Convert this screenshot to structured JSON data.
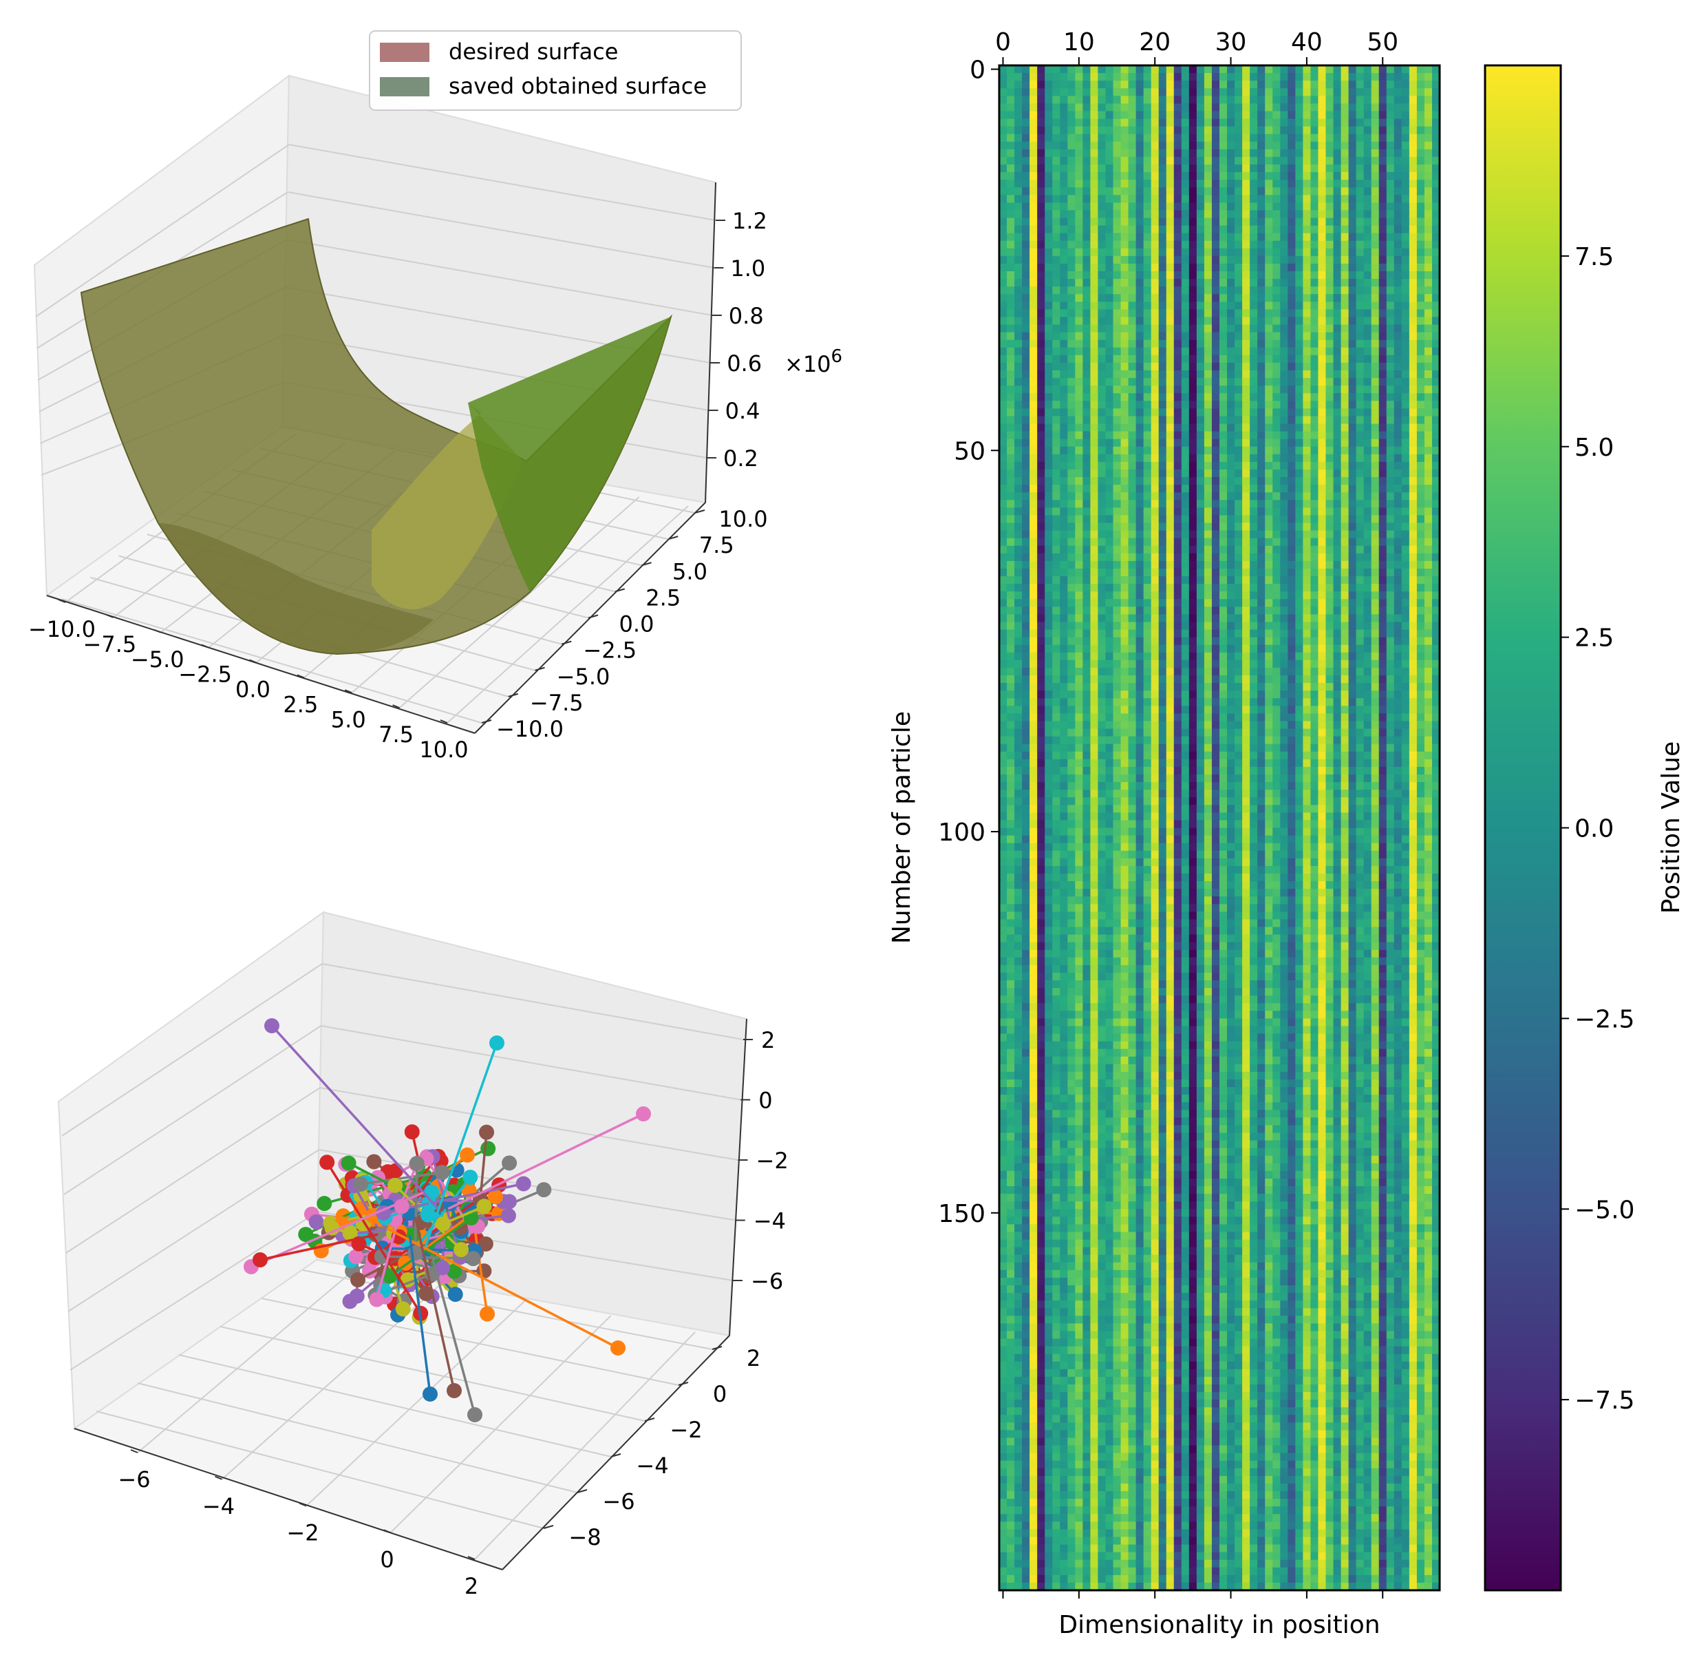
{
  "chart_data": [
    {
      "type": "surface3d",
      "title": "",
      "legend": {
        "placement": "top-right",
        "entries": [
          {
            "label": "desired surface",
            "color": "#b07a7a"
          },
          {
            "label": "saved obtained surface",
            "color": "#7a907a"
          }
        ]
      },
      "x_ticks": [
        "−10.0",
        "−7.5",
        "−5.0",
        "−2.5",
        "0.0",
        "2.5",
        "5.0",
        "7.5",
        "10.0"
      ],
      "y_ticks": [
        "−10.0",
        "−7.5",
        "−5.0",
        "−2.5",
        "0.0",
        "2.5",
        "5.0",
        "7.5",
        "10.0"
      ],
      "z_ticks": [
        "0.2",
        "0.4",
        "0.6",
        "0.8",
        "1.0",
        "1.2"
      ],
      "z_offset_label": "×10",
      "z_offset_exp": "6",
      "xlim": [
        -10,
        10
      ],
      "ylim": [
        -10,
        10
      ],
      "zlim": [
        0,
        1.3
      ],
      "surface_color": "#6b6a2e"
    },
    {
      "type": "scatter3d",
      "title": "",
      "x_ticks": [
        "−6",
        "−4",
        "−2",
        "0",
        "2"
      ],
      "y_ticks": [
        "−8",
        "−6",
        "−4",
        "−2",
        "0",
        "2"
      ],
      "z_ticks": [
        "−6",
        "−4",
        "−2",
        "0",
        "2"
      ],
      "series_colors": [
        "#1f77b4",
        "#ff7f0e",
        "#2ca02c",
        "#d62728",
        "#9467bd",
        "#8c564b",
        "#e377c2",
        "#7f7f7f",
        "#bcbd22",
        "#17becf"
      ],
      "n_particles": 200,
      "xlim": [
        -7,
        2
      ],
      "ylim": [
        -8,
        2
      ],
      "zlim": [
        -7,
        2
      ]
    },
    {
      "type": "heatmap",
      "title": "",
      "xlabel": "Dimensionality in position",
      "ylabel": "Number of particle",
      "x_ticks": [
        "0",
        "10",
        "20",
        "30",
        "40",
        "50"
      ],
      "y_ticks": [
        "0",
        "50",
        "100",
        "150"
      ],
      "n_rows": 200,
      "n_cols": 58,
      "colorbar": {
        "label": "Position Value",
        "ticks": [
          "7.5",
          "5.0",
          "2.5",
          "0.0",
          "−2.5",
          "−5.0",
          "−7.5"
        ],
        "vmin": -10,
        "vmax": 10,
        "colormap": "viridis"
      },
      "column_means": [
        2.0,
        3.5,
        1.2,
        -1.5,
        9.5,
        -8.0,
        0.5,
        2.5,
        1.0,
        3.0,
        5.0,
        1.0,
        7.8,
        2.0,
        1.5,
        4.5,
        6.5,
        4.0,
        -1.0,
        3.5,
        8.5,
        -2.0,
        8.8,
        -6.0,
        1.0,
        -9.0,
        0.5,
        6.0,
        -5.0,
        3.5,
        0.0,
        1.5,
        8.0,
        2.0,
        -1.5,
        4.5,
        3.0,
        0.0,
        -3.0,
        1.5,
        7.0,
        3.5,
        9.0,
        4.5,
        0.5,
        7.0,
        -2.0,
        2.0,
        1.0,
        6.0,
        -6.0,
        2.0,
        -0.5,
        1.0,
        9.0,
        4.0,
        6.0,
        2.0
      ]
    }
  ]
}
